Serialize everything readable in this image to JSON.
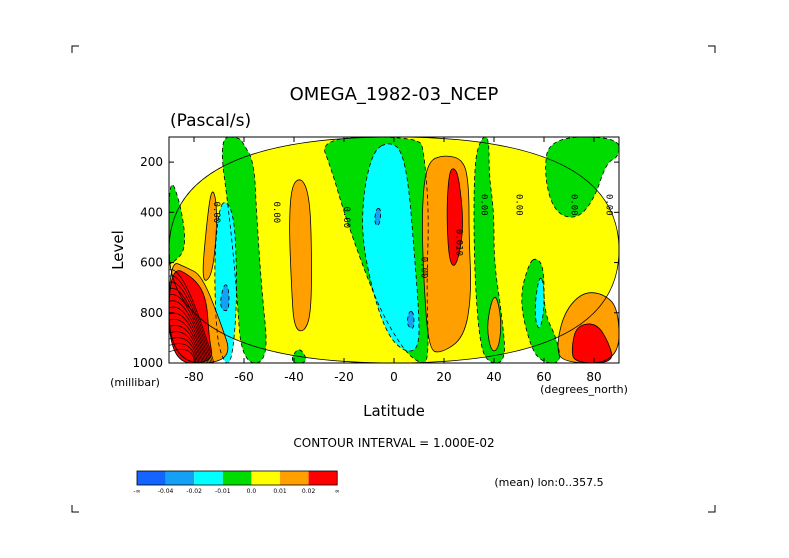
{
  "chart_data": {
    "type": "contour",
    "title": "OMEGA_1982-03_NCEP",
    "subtitle": "(Pascal/s)",
    "xlabel": "Latitude",
    "x_unit": "(degrees_north)",
    "ylabel": "Level",
    "y_unit": "(millibar)",
    "xlim": [
      -90,
      90
    ],
    "ylim": [
      1000,
      100
    ],
    "x_ticks": [
      {
        "value": -80,
        "label": "-80"
      },
      {
        "value": -60,
        "label": "-60"
      },
      {
        "value": -40,
        "label": "-40"
      },
      {
        "value": -20,
        "label": "-20"
      },
      {
        "value": 0,
        "label": "0"
      },
      {
        "value": 20,
        "label": "20"
      },
      {
        "value": 40,
        "label": "40"
      },
      {
        "value": 60,
        "label": "60"
      },
      {
        "value": 80,
        "label": "80"
      }
    ],
    "y_ticks": [
      {
        "value": 200,
        "label": "200"
      },
      {
        "value": 400,
        "label": "400"
      },
      {
        "value": 600,
        "label": "600"
      },
      {
        "value": 800,
        "label": "800"
      },
      {
        "value": 1000,
        "label": "1000"
      }
    ],
    "contour_interval_text": "CONTOUR INTERVAL = 1.000E-02",
    "footer_text": "(mean) lon:0..357.5",
    "contour_labels": [
      {
        "x": -72,
        "y": 400,
        "text": "0.00"
      },
      {
        "x": -48,
        "y": 400,
        "text": "0.00"
      },
      {
        "x": -20,
        "y": 420,
        "text": "0.00"
      },
      {
        "x": 11,
        "y": 620,
        "text": "0.00"
      },
      {
        "x": 25,
        "y": 520,
        "text": "0.010"
      },
      {
        "x": 35,
        "y": 370,
        "text": "0.00"
      },
      {
        "x": 49,
        "y": 370,
        "text": "0.00"
      },
      {
        "x": 71,
        "y": 370,
        "text": "0.00"
      },
      {
        "x": 85,
        "y": 370,
        "text": "0.00"
      }
    ],
    "legend": {
      "colors": [
        "#1464ff",
        "#14a0f5",
        "#00ffff",
        "#00dc00",
        "#ffff00",
        "#ffa000",
        "#ff0000"
      ],
      "labels": [
        "-∞",
        "-0.04",
        "-0.02",
        "-0.01",
        "0.0",
        "0.01",
        "0.02",
        "∞"
      ]
    },
    "regions": [
      {
        "level": "yellow",
        "points": [
          [
            -90,
            100
          ],
          [
            -90,
            1000
          ],
          [
            90,
            1000
          ],
          [
            90,
            100
          ]
        ]
      },
      {
        "level": "green",
        "points": [
          [
            -70,
            100
          ],
          [
            -66,
            400
          ],
          [
            -63,
            700
          ],
          [
            -61,
            1000
          ],
          [
            -50,
            1000
          ],
          [
            -53,
            700
          ],
          [
            -55,
            400
          ],
          [
            -56,
            200
          ],
          [
            -60,
            130
          ],
          [
            -62,
            100
          ]
        ]
      },
      {
        "level": "green",
        "points": [
          [
            -30,
            100
          ],
          [
            -25,
            230
          ],
          [
            -20,
            400
          ],
          [
            -13,
            600
          ],
          [
            -5,
            800
          ],
          [
            4,
            950
          ],
          [
            10,
            1000
          ],
          [
            14,
            1000
          ],
          [
            13,
            700
          ],
          [
            14,
            400
          ],
          [
            12,
            160
          ],
          [
            10,
            100
          ]
        ]
      },
      {
        "level": "green",
        "points": [
          [
            35,
            100
          ],
          [
            32,
            200
          ],
          [
            32,
            600
          ],
          [
            34,
            900
          ],
          [
            37,
            1000
          ],
          [
            45,
            1000
          ],
          [
            43,
            800
          ],
          [
            40,
            600
          ],
          [
            40,
            400
          ],
          [
            38,
            250
          ],
          [
            38,
            100
          ]
        ]
      },
      {
        "level": "green",
        "points": [
          [
            62,
            100
          ],
          [
            60,
            250
          ],
          [
            64,
            400
          ],
          [
            73,
            430
          ],
          [
            80,
            350
          ],
          [
            85,
            200
          ],
          [
            90,
            180
          ],
          [
            90,
            100
          ]
        ]
      },
      {
        "level": "green",
        "points": [
          [
            54,
            600
          ],
          [
            50,
            750
          ],
          [
            55,
            950
          ],
          [
            60,
            1000
          ],
          [
            67,
            1000
          ],
          [
            65,
            900
          ],
          [
            60,
            800
          ],
          [
            60,
            620
          ],
          [
            57,
            580
          ]
        ]
      },
      {
        "level": "green",
        "points": [
          [
            -90,
            240
          ],
          [
            -85,
            380
          ],
          [
            -83,
            550
          ],
          [
            -89,
            605
          ],
          [
            -90,
            605
          ]
        ]
      },
      {
        "level": "green",
        "points": [
          [
            -42,
            1000
          ],
          [
            -38,
            930
          ],
          [
            -34,
            1000
          ]
        ]
      },
      {
        "level": "cyan",
        "points": [
          [
            -70,
            380
          ],
          [
            -72,
            600
          ],
          [
            -71,
            900
          ],
          [
            -68,
            1000
          ],
          [
            -65,
            1000
          ],
          [
            -63,
            800
          ],
          [
            -63,
            600
          ],
          [
            -64,
            420
          ],
          [
            -67,
            350
          ]
        ]
      },
      {
        "level": "cyan",
        "points": [
          [
            -8,
            150
          ],
          [
            -12,
            300
          ],
          [
            -13,
            500
          ],
          [
            -8,
            740
          ],
          [
            -2,
            900
          ],
          [
            5,
            960
          ],
          [
            10,
            940
          ],
          [
            10,
            800
          ],
          [
            8,
            550
          ],
          [
            6,
            300
          ],
          [
            3,
            150
          ],
          [
            -2,
            120
          ]
        ]
      },
      {
        "level": "cyan",
        "points": [
          [
            58,
            650
          ],
          [
            56,
            800
          ],
          [
            58,
            880
          ],
          [
            60,
            800
          ],
          [
            60,
            680
          ]
        ]
      },
      {
        "level": "orange",
        "points": [
          [
            -73,
            300
          ],
          [
            -75,
            450
          ],
          [
            -77,
            680
          ],
          [
            -73,
            660
          ],
          [
            -71,
            500
          ],
          [
            -71,
            350
          ]
        ]
      },
      {
        "level": "orange",
        "points": [
          [
            -41,
            290
          ],
          [
            -42,
            450
          ],
          [
            -41,
            700
          ],
          [
            -40,
            860
          ],
          [
            -36,
            880
          ],
          [
            -33,
            800
          ],
          [
            -33,
            500
          ],
          [
            -34,
            330
          ],
          [
            -37,
            260
          ]
        ]
      },
      {
        "level": "orange",
        "points": [
          [
            13,
            200
          ],
          [
            11,
            400
          ],
          [
            12,
            700
          ],
          [
            14,
            950
          ],
          [
            19,
            960
          ],
          [
            28,
            900
          ],
          [
            31,
            730
          ],
          [
            30,
            500
          ],
          [
            30,
            300
          ],
          [
            28,
            190
          ],
          [
            20,
            170
          ]
        ]
      },
      {
        "level": "orange",
        "points": [
          [
            39,
            750
          ],
          [
            37,
            860
          ],
          [
            39,
            960
          ],
          [
            42,
            940
          ],
          [
            43,
            830
          ],
          [
            41,
            730
          ]
        ]
      },
      {
        "level": "orange",
        "points": [
          [
            68,
            800
          ],
          [
            65,
            930
          ],
          [
            67,
            1000
          ],
          [
            90,
            1000
          ],
          [
            90,
            780
          ],
          [
            83,
            720
          ],
          [
            75,
            720
          ]
        ]
      },
      {
        "level": "orange",
        "points": [
          [
            -90,
            590
          ],
          [
            -90,
            1000
          ],
          [
            -64,
            1000
          ],
          [
            -70,
            820
          ],
          [
            -77,
            650
          ],
          [
            -83,
            620
          ]
        ]
      },
      {
        "level": "red",
        "points": [
          [
            22,
            240
          ],
          [
            21,
            400
          ],
          [
            22,
            600
          ],
          [
            25,
            620
          ],
          [
            28,
            460
          ],
          [
            26,
            260
          ],
          [
            24,
            220
          ]
        ]
      },
      {
        "level": "red",
        "points": [
          [
            73,
            850
          ],
          [
            71,
            940
          ],
          [
            72,
            1000
          ],
          [
            88,
            1000
          ],
          [
            86,
            920
          ],
          [
            81,
            840
          ]
        ]
      },
      {
        "level": "red",
        "points": [
          [
            -90,
            610
          ],
          [
            -90,
            1000
          ],
          [
            -72,
            1000
          ],
          [
            -74,
            900
          ],
          [
            -75,
            740
          ],
          [
            -80,
            660
          ]
        ]
      },
      {
        "level": "blue",
        "points": [
          [
            -68,
            680
          ],
          [
            -70,
            780
          ],
          [
            -66,
            800
          ],
          [
            -66,
            700
          ]
        ]
      },
      {
        "level": "blue",
        "points": [
          [
            -7,
            380
          ],
          [
            -8,
            440
          ],
          [
            -6,
            460
          ],
          [
            -5,
            390
          ]
        ]
      },
      {
        "level": "blue",
        "points": [
          [
            6,
            790
          ],
          [
            5,
            850
          ],
          [
            8,
            870
          ],
          [
            8,
            800
          ]
        ]
      }
    ]
  }
}
